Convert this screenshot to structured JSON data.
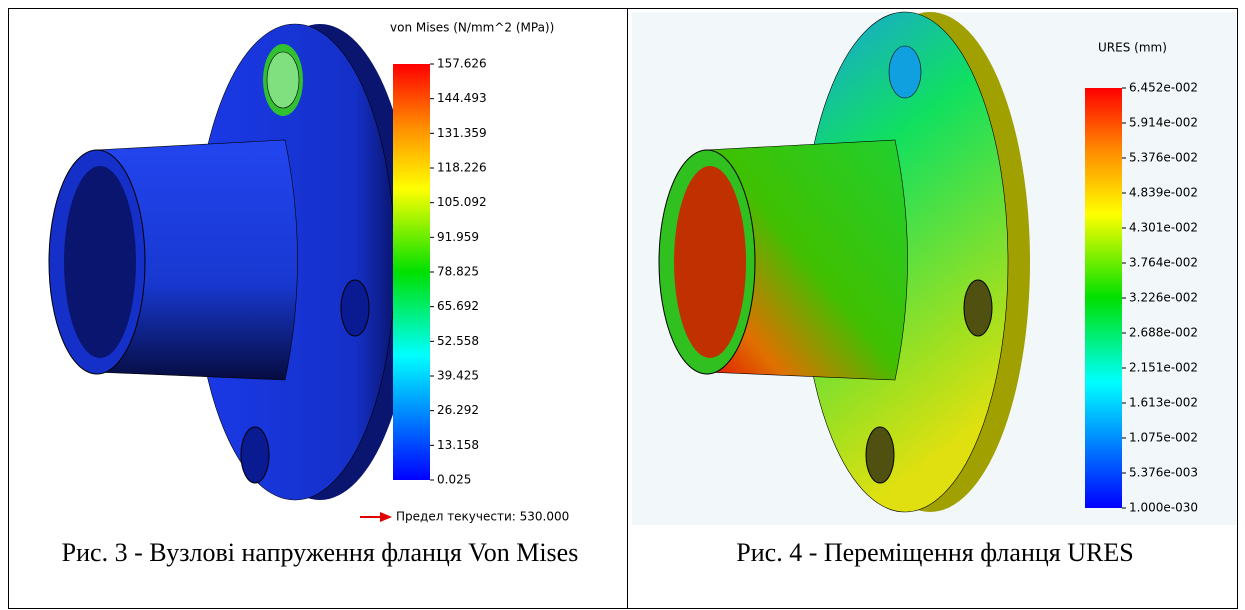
{
  "figures": [
    {
      "legend_title": "von Mises (N/mm^2 (MPa))",
      "legend_ticks": [
        "157.626",
        "144.493",
        "131.359",
        "118.226",
        "105.092",
        "91.959",
        "78.825",
        "65.692",
        "52.558",
        "39.425",
        "26.292",
        "13.158",
        "0.025"
      ],
      "yield_note": "Предел текучести: 530.000",
      "caption": "Рис. 3 - Вузлові напруження фланця Von Mises"
    },
    {
      "legend_title": "URES (mm)",
      "legend_ticks": [
        "6.452e-002",
        "5.914e-002",
        "5.376e-002",
        "4.839e-002",
        "4.301e-002",
        "3.764e-002",
        "3.226e-002",
        "2.688e-002",
        "2.151e-002",
        "1.613e-002",
        "1.075e-002",
        "5.376e-003",
        "1.000e-030"
      ],
      "caption": "Рис. 4 - Переміщення фланця URES"
    }
  ]
}
